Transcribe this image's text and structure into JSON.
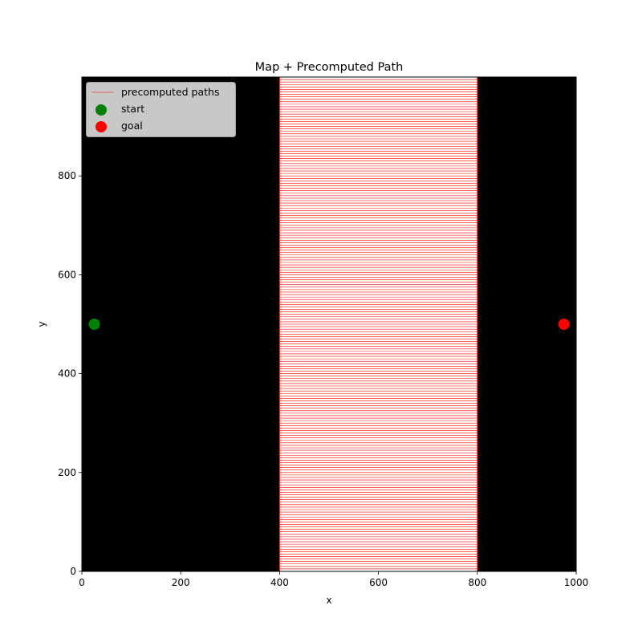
{
  "chart_data": {
    "type": "line",
    "title": "Map + Precomputed Path",
    "xlabel": "x",
    "ylabel": "y",
    "xlim": [
      0,
      1000
    ],
    "ylim": [
      0,
      1000
    ],
    "x_ticks": [
      0,
      200,
      400,
      600,
      800,
      1000
    ],
    "y_ticks": [
      0,
      200,
      400,
      600,
      800
    ],
    "grid": false,
    "legend_position": "upper-left",
    "map": {
      "obstacle_color": "#000000",
      "free_color": "#ffffff",
      "free_region": {
        "x": [
          400,
          800
        ],
        "y": [
          0,
          1000
        ]
      }
    },
    "series": [
      {
        "name": "precomputed paths",
        "kind": "horizontal-lines",
        "x_range": [
          400,
          800
        ],
        "y_values_start": 0,
        "y_values_step": 5,
        "y_values_count": 200,
        "color": "#ff0000"
      },
      {
        "name": "start",
        "kind": "point",
        "x": 25,
        "y": 500,
        "color": "#008000"
      },
      {
        "name": "goal",
        "kind": "point",
        "x": 975,
        "y": 500,
        "color": "#ff0000"
      }
    ]
  }
}
